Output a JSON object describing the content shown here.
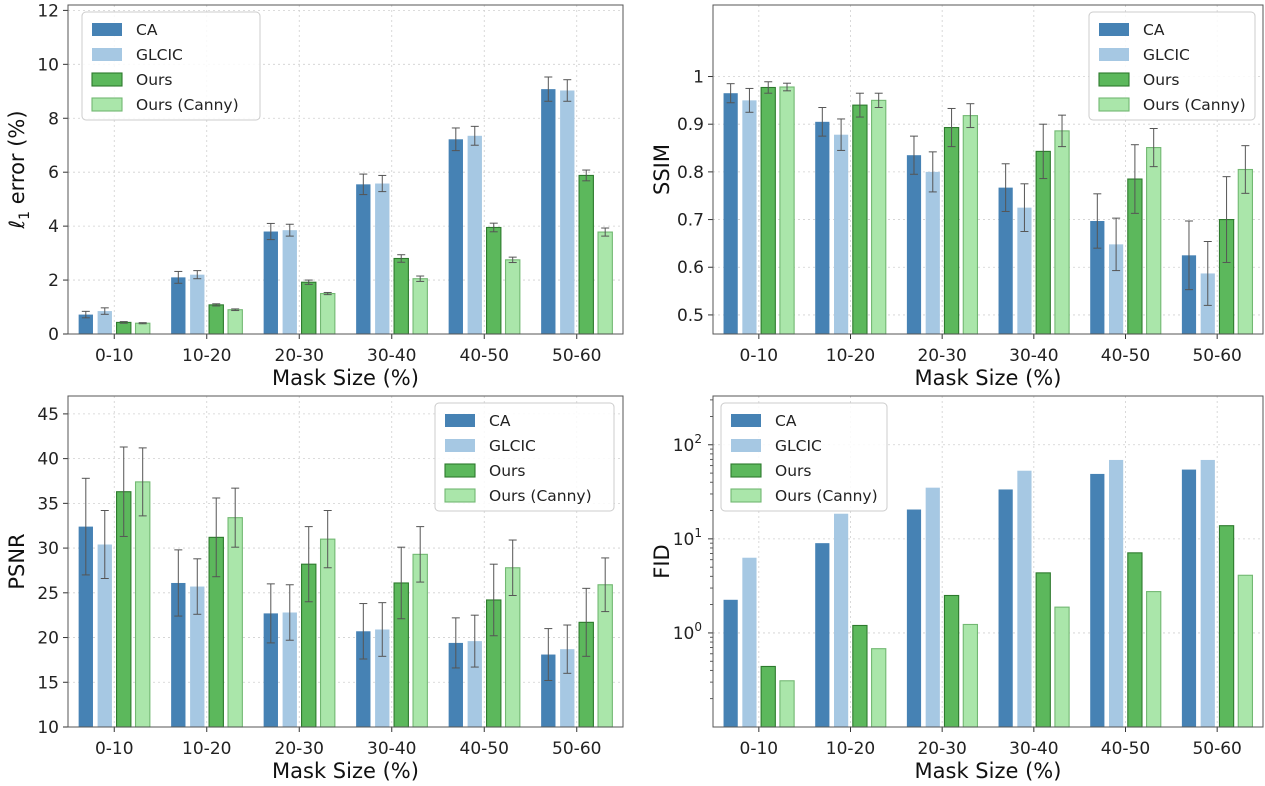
{
  "colors": {
    "CA": "#4682b4",
    "GLCIC": "#a6c8e3",
    "Ours": "#5cb85c",
    "Ours (Canny)": "#aae6aa",
    "ours_edge": "#2d7a2d",
    "canny_edge": "#72b872",
    "error_bar": "#555555",
    "grid": "#d0d0d0"
  },
  "chart_data": [
    {
      "type": "bar",
      "xlabel": "Mask Size (%)",
      "ylabel": "ℓ1 error (%)",
      "ylabel_main": "ℓ",
      "ylabel_sub": "1",
      "ylabel_rest": " error (%)",
      "ylim": [
        0,
        12.2
      ],
      "yscale": "linear",
      "yticks": [
        0,
        2,
        4,
        6,
        8,
        10,
        12
      ],
      "grid": true,
      "legend_position": "top-left",
      "categories": [
        "0-10",
        "10-20",
        "20-30",
        "30-40",
        "40-50",
        "50-60"
      ],
      "series": [
        {
          "name": "CA",
          "values": [
            0.72,
            2.1,
            3.8,
            5.55,
            7.22,
            9.08
          ],
          "errors": [
            0.12,
            0.22,
            0.3,
            0.38,
            0.42,
            0.45
          ]
        },
        {
          "name": "GLCIC",
          "values": [
            0.85,
            2.2,
            3.85,
            5.58,
            7.35,
            9.03
          ],
          "errors": [
            0.12,
            0.15,
            0.22,
            0.3,
            0.35,
            0.4
          ]
        },
        {
          "name": "Ours",
          "values": [
            0.43,
            1.08,
            1.92,
            2.8,
            3.95,
            5.88
          ],
          "errors": [
            0.03,
            0.04,
            0.08,
            0.14,
            0.16,
            0.2
          ]
        },
        {
          "name": "Ours (Canny)",
          "values": [
            0.4,
            0.9,
            1.5,
            2.05,
            2.75,
            3.78
          ],
          "errors": [
            0.02,
            0.03,
            0.04,
            0.1,
            0.1,
            0.15
          ]
        }
      ]
    },
    {
      "type": "bar",
      "xlabel": "Mask Size (%)",
      "ylabel": "SSIM",
      "ylim": [
        0.46,
        1.15
      ],
      "yscale": "linear",
      "yticks": [
        0.5,
        0.6,
        0.7,
        0.8,
        0.9,
        1.0
      ],
      "grid": true,
      "legend_position": "top-right",
      "categories": [
        "0-10",
        "10-20",
        "20-30",
        "30-40",
        "40-50",
        "50-60"
      ],
      "series": [
        {
          "name": "CA",
          "values": [
            0.965,
            0.905,
            0.835,
            0.767,
            0.697,
            0.625
          ],
          "errors": [
            0.02,
            0.03,
            0.04,
            0.05,
            0.057,
            0.072
          ]
        },
        {
          "name": "GLCIC",
          "values": [
            0.95,
            0.878,
            0.8,
            0.725,
            0.648,
            0.587
          ],
          "errors": [
            0.025,
            0.033,
            0.042,
            0.05,
            0.055,
            0.067
          ]
        },
        {
          "name": "Ours",
          "values": [
            0.977,
            0.94,
            0.893,
            0.843,
            0.785,
            0.7
          ],
          "errors": [
            0.012,
            0.025,
            0.04,
            0.057,
            0.072,
            0.09
          ]
        },
        {
          "name": "Ours (Canny)",
          "values": [
            0.978,
            0.95,
            0.918,
            0.886,
            0.851,
            0.805
          ],
          "errors": [
            0.008,
            0.015,
            0.025,
            0.033,
            0.04,
            0.05
          ]
        }
      ]
    },
    {
      "type": "bar",
      "xlabel": "Mask Size (%)",
      "ylabel": "PSNR",
      "ylim": [
        10,
        47
      ],
      "yscale": "linear",
      "yticks": [
        10,
        15,
        20,
        25,
        30,
        35,
        40,
        45
      ],
      "grid": true,
      "legend_position": "top-right",
      "categories": [
        "0-10",
        "10-20",
        "20-30",
        "30-40",
        "40-50",
        "50-60"
      ],
      "series": [
        {
          "name": "CA",
          "values": [
            32.4,
            26.1,
            22.7,
            20.7,
            19.4,
            18.1
          ],
          "errors": [
            5.4,
            3.7,
            3.3,
            3.1,
            2.8,
            2.9
          ]
        },
        {
          "name": "GLCIC",
          "values": [
            30.4,
            25.7,
            22.8,
            20.9,
            19.6,
            18.7
          ],
          "errors": [
            3.8,
            3.1,
            3.1,
            3.0,
            2.9,
            2.7
          ]
        },
        {
          "name": "Ours",
          "values": [
            36.3,
            31.2,
            28.2,
            26.1,
            24.2,
            21.7
          ],
          "errors": [
            5.0,
            4.4,
            4.2,
            4.0,
            4.0,
            3.8
          ]
        },
        {
          "name": "Ours (Canny)",
          "values": [
            37.4,
            33.4,
            31.0,
            29.3,
            27.8,
            25.9
          ],
          "errors": [
            3.8,
            3.3,
            3.2,
            3.1,
            3.1,
            3.0
          ]
        }
      ]
    },
    {
      "type": "bar",
      "xlabel": "Mask Size (%)",
      "ylabel": "FID",
      "ylim": [
        0.1,
        330
      ],
      "yscale": "log",
      "yticks": [
        1,
        10,
        100
      ],
      "ytick_base": "10",
      "ytick_exponents": [
        "0",
        "1",
        "2"
      ],
      "grid": true,
      "legend_position": "top-left",
      "categories": [
        "0-10",
        "10-20",
        "20-30",
        "30-40",
        "40-50",
        "50-60"
      ],
      "series": [
        {
          "name": "CA",
          "values": [
            2.25,
            9.0,
            20.5,
            33.5,
            49.0,
            54.5
          ]
        },
        {
          "name": "GLCIC",
          "values": [
            6.3,
            18.5,
            35.0,
            53.0,
            69.0,
            69.0
          ]
        },
        {
          "name": "Ours",
          "values": [
            0.44,
            1.2,
            2.5,
            4.35,
            7.1,
            13.8
          ]
        },
        {
          "name": "Ours (Canny)",
          "values": [
            0.31,
            0.68,
            1.23,
            1.88,
            2.75,
            4.1
          ]
        }
      ]
    }
  ]
}
